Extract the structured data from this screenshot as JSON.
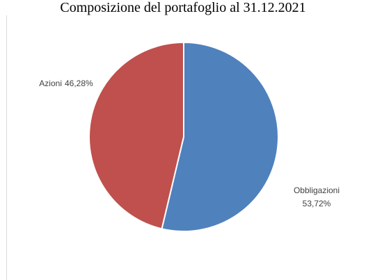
{
  "chart_data": {
    "type": "pie",
    "title": "Composizione del portafoglio al 31.12.2021",
    "categories": [
      "Obbligazioni",
      "Azioni"
    ],
    "values": [
      53.72,
      46.28
    ],
    "value_labels": [
      "53,72%",
      "46,28%"
    ],
    "colors": [
      "#4f81bd",
      "#c0504d"
    ]
  }
}
